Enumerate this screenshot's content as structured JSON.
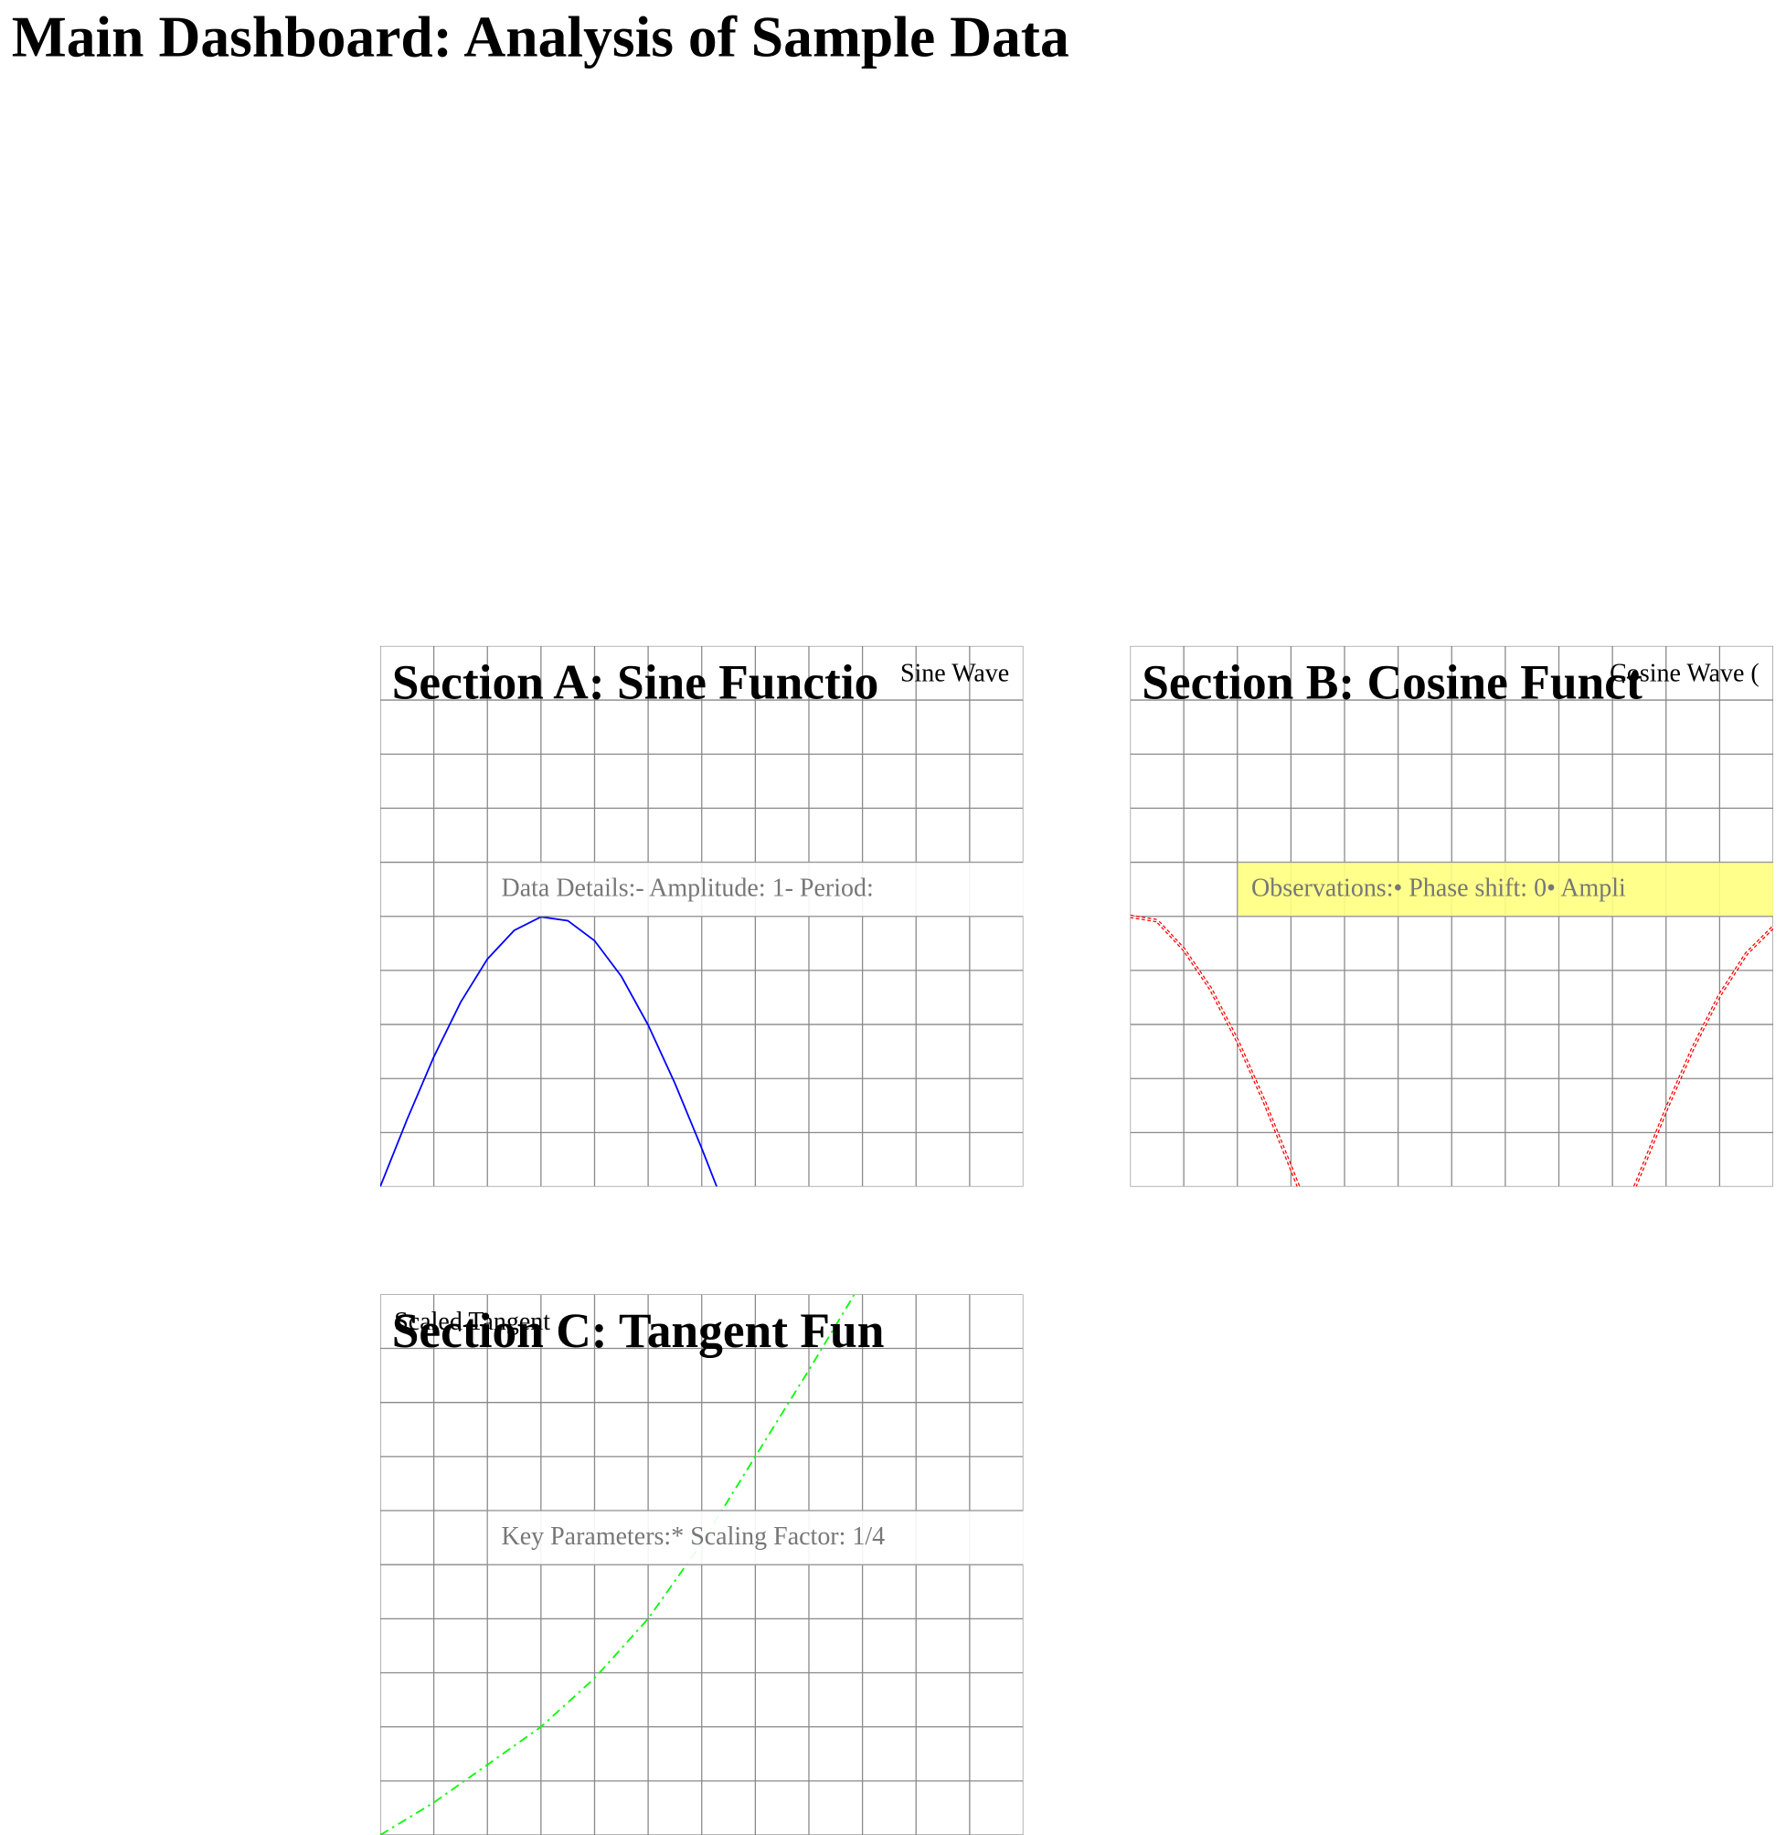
{
  "title": "Main Dashboard: Analysis of Sample Data",
  "chart_data": [
    {
      "type": "line",
      "title": "Section A: Sine Functio",
      "grid": true,
      "xlim": [
        0,
        12
      ],
      "ylim": [
        0,
        10
      ],
      "legend": "upper right",
      "annotation": "Data Details:- Amplitude: 1- Period:",
      "annotation_fill": "#ffffff",
      "x": [
        0,
        0.5,
        1,
        1.5,
        2,
        2.5,
        3,
        3.5,
        4,
        4.5,
        5,
        5.5,
        6,
        6.28
      ],
      "series": [
        {
          "name": "Sine Wave",
          "color": "#0000ff",
          "line_style": "solid",
          "values": [
            0,
            1.24,
            2.4,
            3.41,
            4.21,
            4.74,
            4.99,
            4.92,
            4.55,
            3.89,
            2.99,
            1.91,
            0.71,
            0
          ]
        }
      ]
    },
    {
      "type": "line",
      "title": "Section B: Cosine Funct",
      "grid": true,
      "xlim": [
        0,
        12
      ],
      "ylim": [
        0,
        10
      ],
      "legend": "upper right",
      "annotation": "Observations:• Phase shift: 0• Ampli",
      "annotation_fill": "#ffff80",
      "x": [
        0,
        0.5,
        1,
        1.5,
        2,
        2.5,
        3,
        3.14,
        6,
        9.42,
        10,
        10.5,
        11,
        11.5,
        12
      ],
      "series": [
        {
          "name": "Cosine Wave (",
          "color": "#ff0000",
          "line_style": "decorated",
          "values": [
            5,
            4.92,
            4.39,
            3.66,
            2.7,
            1.58,
            0.35,
            0,
            null,
            0,
            1.42,
            2.56,
            3.54,
            4.31,
            4.8
          ]
        }
      ]
    },
    {
      "type": "line",
      "title": "Section C: Tangent Fun",
      "grid": true,
      "xlim": [
        0,
        12
      ],
      "ylim": [
        0,
        10
      ],
      "legend": "upper left",
      "annotation": "Key Parameters:* Scaling Factor: 1/4",
      "annotation_fill": "#ffffff",
      "x": [
        0,
        1,
        2,
        3,
        4,
        5,
        6,
        7,
        8,
        8.85
      ],
      "series": [
        {
          "name": "Scaled Tangent",
          "color": "#00ff00",
          "line_style": "dashdot",
          "values": [
            0,
            0.6,
            1.3,
            2,
            2.9,
            4,
            5.4,
            7,
            8.6,
            10
          ]
        }
      ]
    }
  ]
}
